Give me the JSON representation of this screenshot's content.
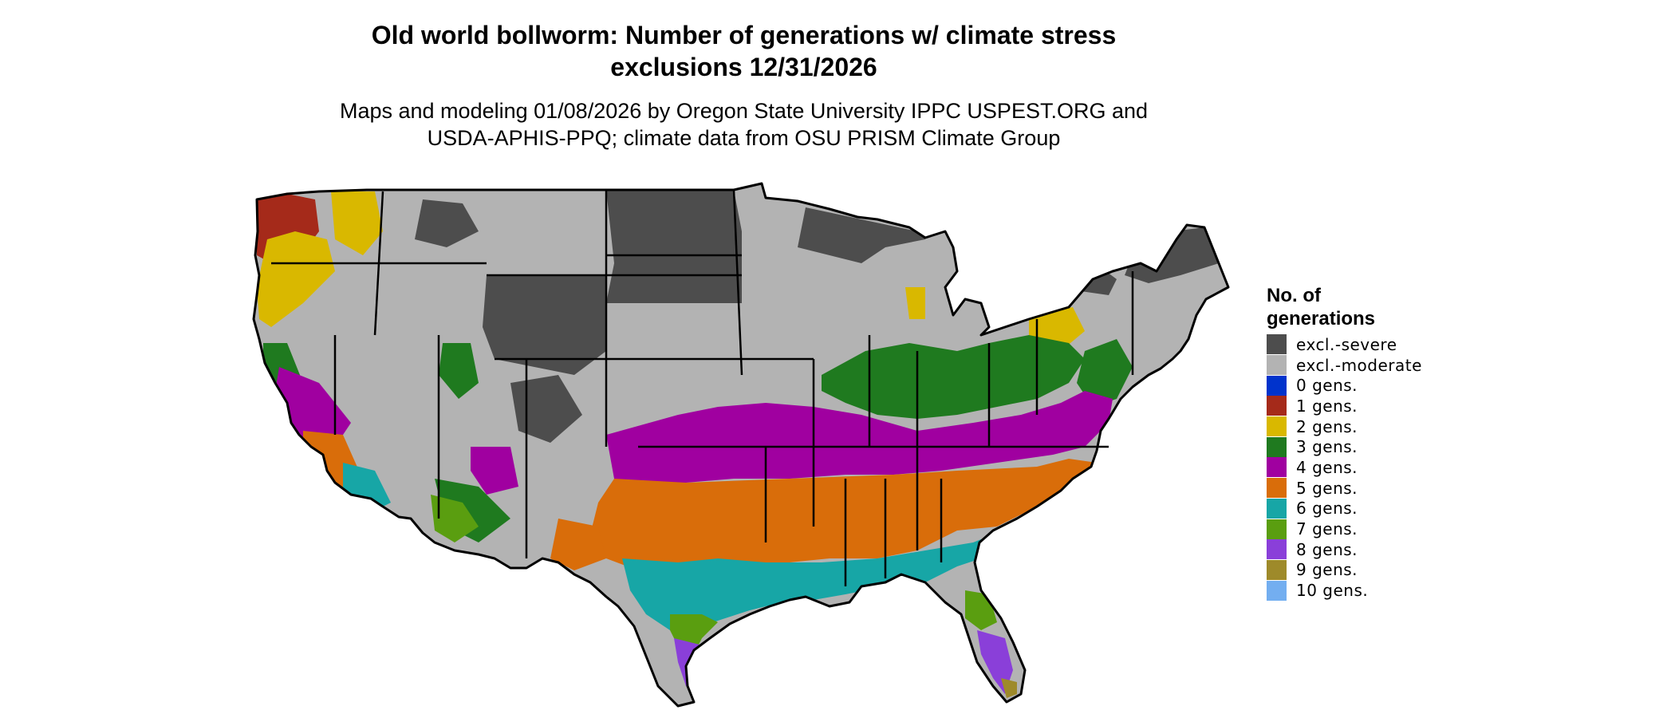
{
  "title": {
    "line1": "Old world bollworm: Number of generations w/ climate stress",
    "line2": "exclusions 12/31/2026"
  },
  "subtitle": {
    "line1": "Maps and modeling 01/08/2026 by Oregon State University IPPC USPEST.ORG and",
    "line2": "USDA-APHIS-PPQ; climate data from OSU PRISM Climate Group"
  },
  "legend": {
    "title_line1": "No. of",
    "title_line2": "generations",
    "items": [
      {
        "label": "excl.-severe",
        "color": "#4d4d4d"
      },
      {
        "label": "excl.-moderate",
        "color": "#b3b3b3"
      },
      {
        "label": "0 gens.",
        "color": "#0033cc"
      },
      {
        "label": "1 gens.",
        "color": "#a52a1a"
      },
      {
        "label": "2 gens.",
        "color": "#d9b800"
      },
      {
        "label": "3 gens.",
        "color": "#1f7a1f"
      },
      {
        "label": "4 gens.",
        "color": "#a000a0"
      },
      {
        "label": "5 gens.",
        "color": "#d96d0a"
      },
      {
        "label": "6 gens.",
        "color": "#17a6a6"
      },
      {
        "label": "7 gens.",
        "color": "#5a9e10"
      },
      {
        "label": "8 gens.",
        "color": "#8a3fd9"
      },
      {
        "label": "9 gens.",
        "color": "#9e8a2a"
      },
      {
        "label": "10 gens.",
        "color": "#73aef0"
      }
    ]
  }
}
